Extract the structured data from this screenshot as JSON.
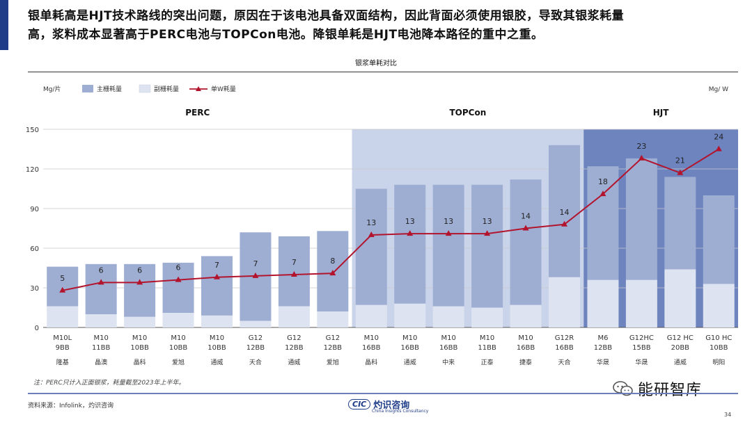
{
  "headline": {
    "line1": "银单耗高是HJT技术路线的突出问题，原因在于该电池具备双面结构，因此背面必须使用银胶，导致其银浆耗量",
    "line2": "高，浆料成本显著高于PERC电池与TOPCon电池。降银单耗是HJT电池降本路径的重中之重。"
  },
  "chart_data": {
    "type": "bar",
    "title": "银浆单耗对比",
    "y_left_unit": "Mg/片",
    "y_right_unit": "Mg/ W",
    "ylim": [
      0,
      150
    ],
    "yticks": [
      0,
      30,
      60,
      90,
      120,
      150
    ],
    "legend": {
      "position": "top-left",
      "items": [
        "主栅耗量",
        "副栅耗量",
        "单W耗量"
      ]
    },
    "groups": [
      {
        "name": "PERC",
        "start": 0,
        "end": 7
      },
      {
        "name": "TOPCon",
        "start": 8,
        "end": 13
      },
      {
        "name": "HJT",
        "start": 14,
        "end": 17
      }
    ],
    "categories": [
      {
        "spec": "M10L",
        "bb": "9BB",
        "company": "隆基"
      },
      {
        "spec": "M10",
        "bb": "11BB",
        "company": "晶澳"
      },
      {
        "spec": "M10",
        "bb": "10BB",
        "company": "晶科"
      },
      {
        "spec": "M10",
        "bb": "10BB",
        "company": "爱旭"
      },
      {
        "spec": "M10",
        "bb": "10BB",
        "company": "通威"
      },
      {
        "spec": "G12",
        "bb": "12BB",
        "company": "天合"
      },
      {
        "spec": "G12",
        "bb": "12BB",
        "company": "通威"
      },
      {
        "spec": "G12",
        "bb": "12BB",
        "company": "爱旭"
      },
      {
        "spec": "M10",
        "bb": "16BB",
        "company": "晶科"
      },
      {
        "spec": "M10",
        "bb": "16BB",
        "company": "通威"
      },
      {
        "spec": "M10",
        "bb": "16BB",
        "company": "中来"
      },
      {
        "spec": "M10",
        "bb": "11BB",
        "company": "正泰"
      },
      {
        "spec": "M10",
        "bb": "16BB",
        "company": "捷泰"
      },
      {
        "spec": "G12R",
        "bb": "16BB",
        "company": "天合"
      },
      {
        "spec": "M6",
        "bb": "12BB",
        "company": "华晟"
      },
      {
        "spec": "G12HC",
        "bb": "15BB",
        "company": "华晟"
      },
      {
        "spec": "G12 HC",
        "bb": "20BB",
        "company": "通威"
      },
      {
        "spec": "G10 HC",
        "bb": "10BB",
        "company": "明阳"
      }
    ],
    "series": [
      {
        "name": "主栅耗量",
        "type": "bar",
        "color": "#9eaed3",
        "values": [
          30,
          38,
          40,
          38,
          45,
          67,
          53,
          61,
          88,
          90,
          92,
          93,
          95,
          100,
          86,
          92,
          70,
          67
        ]
      },
      {
        "name": "副栅耗量",
        "type": "bar",
        "color": "#dde3f0",
        "values": [
          16,
          10,
          8,
          11,
          9,
          5,
          16,
          12,
          17,
          18,
          16,
          15,
          17,
          38,
          36,
          36,
          44,
          33
        ]
      },
      {
        "name": "单W耗量",
        "type": "line",
        "color": "#b3142d",
        "values": [
          5,
          6,
          6,
          6,
          7,
          7,
          7,
          8,
          13,
          13,
          13,
          13,
          14,
          14,
          18,
          23,
          21,
          24
        ],
        "y_positions": [
          28,
          34,
          34,
          36,
          38,
          39,
          40,
          41,
          70,
          71,
          71,
          71,
          75,
          78,
          101,
          128,
          117,
          135
        ]
      }
    ]
  },
  "footnote": "注：PERC只计入正面银浆，耗量截至2023年上半年。",
  "source": "资料来源：Infolink，灼识咨询",
  "brand": {
    "logo": "CIC",
    "name": "灼识咨询",
    "sub": "China Insights Consultancy"
  },
  "wechat": {
    "label": "能研智库"
  },
  "page_number": "34"
}
